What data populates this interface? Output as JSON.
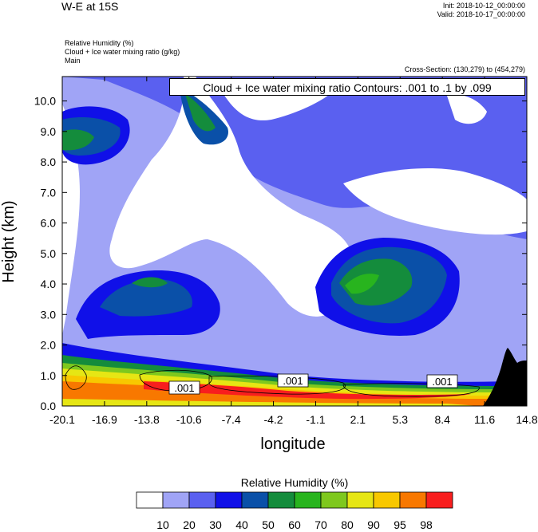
{
  "header": {
    "title": "W-E at 15S",
    "init": "Init: 2018-10-12_00:00:00",
    "valid": "Valid: 2018-10-17_00:00:00",
    "field1": "Relative Humidity   (%)",
    "field2": "Cloud + Ice water mixing ratio   (g/kg)",
    "field3": "Main",
    "cross_section": "Cross-Section: (130,279) to (454,279)"
  },
  "contour_info": "Cloud + Ice water mixing ratio Contours: .001 to .1 by .099",
  "colors": {
    "shades": [
      "#ffffff",
      "#a0a4f6",
      "#5a60f0",
      "#1010e8",
      "#0a50a8",
      "#148c3c",
      "#28b41e",
      "#7ec81e",
      "#e6e614",
      "#f8c800",
      "#f87800",
      "#f81e1e"
    ],
    "terrain": "#000000"
  },
  "chart_data": {
    "type": "heatmap",
    "title": "Cloud + Ice water mixing ratio Contours: .001 to .1 by .099",
    "xlabel": "longitude",
    "ylabel": "Height (km)",
    "xlim": [
      -20.1,
      14.8
    ],
    "ylim": [
      0.0,
      10.8
    ],
    "x_ticks": [
      "-20.1",
      "-16.9",
      "-13.8",
      "-10.6",
      "-7.4",
      "-4.2",
      "-1.1",
      "2.1",
      "5.3",
      "8.4",
      "11.6",
      "14.8"
    ],
    "y_ticks": [
      "0.0",
      "1.0",
      "2.0",
      "3.0",
      "4.0",
      "5.0",
      "6.0",
      "7.0",
      "8.0",
      "9.0",
      "10.0"
    ],
    "colorbar": {
      "label": "Relative Humidity   (%)",
      "levels": [
        "10",
        "20",
        "30",
        "40",
        "50",
        "60",
        "70",
        "80",
        "90",
        "95",
        "98"
      ]
    },
    "contour_labels": [
      ".001",
      ".001",
      ".001"
    ]
  }
}
